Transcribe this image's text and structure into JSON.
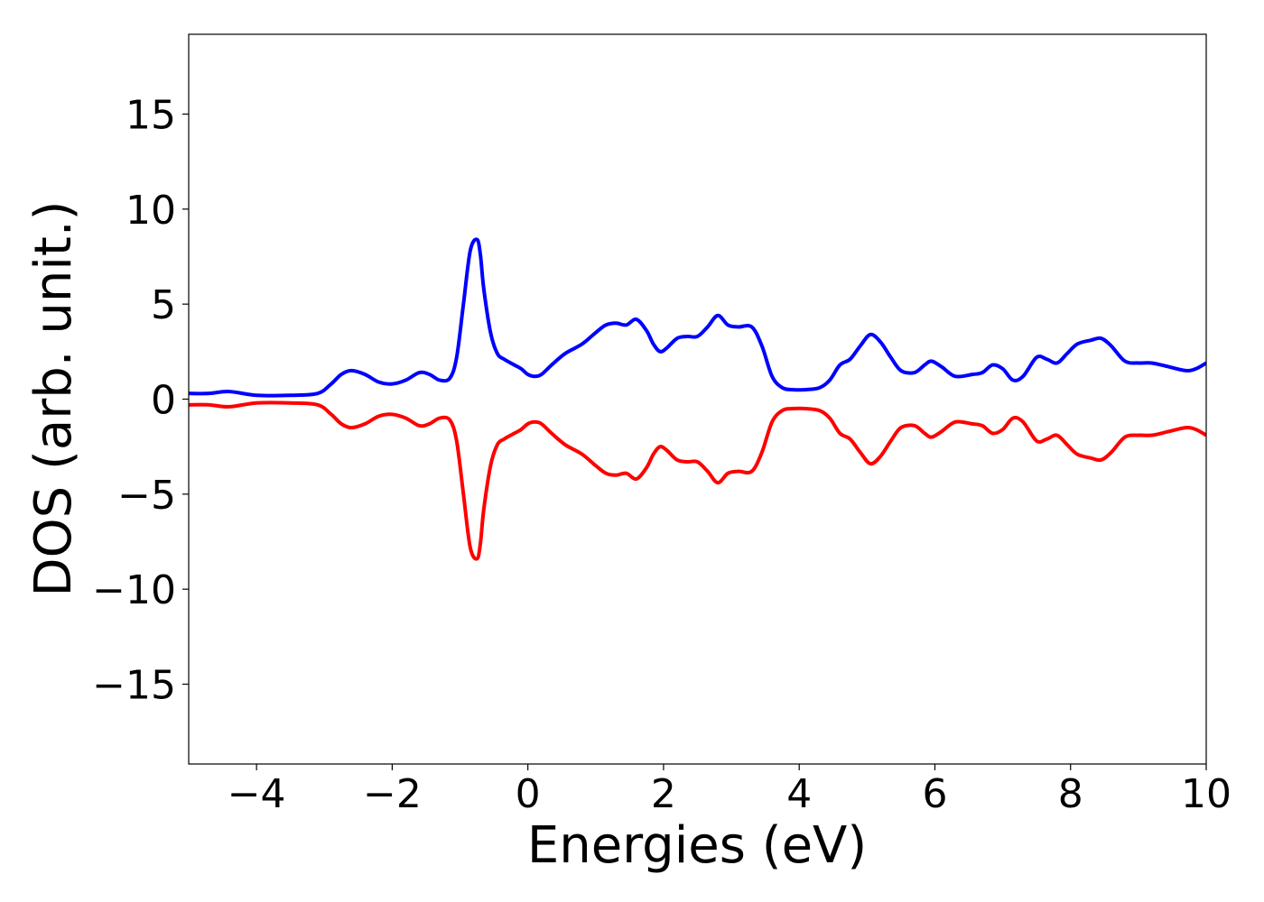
{
  "chart_data": {
    "type": "line",
    "title": "",
    "xlabel": "Energies (eV)",
    "ylabel": "DOS (arb. unit.)",
    "xlim": [
      -5,
      10
    ],
    "ylim": [
      -19.2,
      19.2
    ],
    "xticks": [
      -4,
      -2,
      0,
      2,
      4,
      6,
      8,
      10
    ],
    "xtick_labels": [
      "−4",
      "−2",
      "0",
      "2",
      "4",
      "6",
      "8",
      "10"
    ],
    "yticks": [
      15,
      10,
      5,
      0,
      -5,
      -10,
      -15
    ],
    "ytick_labels": [
      "15",
      "10",
      "5",
      "0",
      "−5",
      "−10",
      "−15"
    ],
    "grid": false,
    "legend": "none",
    "series": [
      {
        "color": "#0000ff",
        "x": [
          -5.0,
          -4.7,
          -4.4,
          -4.0,
          -3.5,
          -3.1,
          -2.9,
          -2.75,
          -2.6,
          -2.4,
          -2.2,
          -2.0,
          -1.8,
          -1.6,
          -1.45,
          -1.3,
          -1.15,
          -1.05,
          -0.95,
          -0.85,
          -0.75,
          -0.7,
          -0.65,
          -0.55,
          -0.45,
          -0.35,
          -0.2,
          -0.1,
          0.0,
          0.1,
          0.2,
          0.35,
          0.55,
          0.8,
          1.0,
          1.15,
          1.3,
          1.45,
          1.6,
          1.75,
          1.85,
          1.95,
          2.05,
          2.2,
          2.35,
          2.5,
          2.65,
          2.8,
          2.95,
          3.1,
          3.3,
          3.45,
          3.6,
          3.75,
          3.9,
          4.1,
          4.3,
          4.45,
          4.6,
          4.75,
          4.9,
          5.05,
          5.2,
          5.35,
          5.5,
          5.7,
          5.85,
          5.95,
          6.1,
          6.3,
          6.55,
          6.7,
          6.85,
          7.0,
          7.15,
          7.3,
          7.5,
          7.65,
          7.8,
          7.95,
          8.1,
          8.3,
          8.45,
          8.6,
          8.8,
          9.0,
          9.2,
          9.45,
          9.7,
          9.85,
          10.0
        ],
        "y": [
          0.3,
          0.3,
          0.4,
          0.2,
          0.2,
          0.3,
          0.8,
          1.3,
          1.5,
          1.3,
          0.9,
          0.8,
          1.0,
          1.4,
          1.3,
          1.0,
          1.1,
          2.2,
          5.0,
          7.8,
          8.4,
          7.6,
          5.8,
          3.5,
          2.4,
          2.1,
          1.8,
          1.6,
          1.3,
          1.2,
          1.3,
          1.8,
          2.4,
          2.9,
          3.5,
          3.9,
          4.0,
          3.9,
          4.2,
          3.6,
          2.9,
          2.5,
          2.7,
          3.2,
          3.3,
          3.3,
          3.8,
          4.4,
          3.9,
          3.8,
          3.8,
          2.8,
          1.2,
          0.6,
          0.5,
          0.5,
          0.6,
          1.0,
          1.8,
          2.1,
          2.8,
          3.4,
          3.0,
          2.2,
          1.5,
          1.4,
          1.8,
          2.0,
          1.7,
          1.2,
          1.3,
          1.4,
          1.8,
          1.6,
          1.0,
          1.2,
          2.2,
          2.1,
          1.9,
          2.4,
          2.9,
          3.1,
          3.2,
          2.8,
          2.0,
          1.9,
          1.9,
          1.7,
          1.5,
          1.6,
          1.9
        ]
      },
      {
        "color": "#ff0000",
        "x": [
          -5.0,
          -4.7,
          -4.4,
          -4.0,
          -3.5,
          -3.1,
          -2.9,
          -2.75,
          -2.6,
          -2.4,
          -2.2,
          -2.0,
          -1.8,
          -1.6,
          -1.45,
          -1.3,
          -1.15,
          -1.05,
          -0.95,
          -0.85,
          -0.75,
          -0.7,
          -0.65,
          -0.55,
          -0.45,
          -0.35,
          -0.2,
          -0.1,
          0.0,
          0.1,
          0.2,
          0.35,
          0.55,
          0.8,
          1.0,
          1.15,
          1.3,
          1.45,
          1.6,
          1.75,
          1.85,
          1.95,
          2.05,
          2.2,
          2.35,
          2.5,
          2.65,
          2.8,
          2.95,
          3.1,
          3.3,
          3.45,
          3.6,
          3.75,
          3.9,
          4.1,
          4.3,
          4.45,
          4.6,
          4.75,
          4.9,
          5.05,
          5.2,
          5.35,
          5.5,
          5.7,
          5.85,
          5.95,
          6.1,
          6.3,
          6.55,
          6.7,
          6.85,
          7.0,
          7.15,
          7.3,
          7.5,
          7.65,
          7.8,
          7.95,
          8.1,
          8.3,
          8.45,
          8.6,
          8.8,
          9.0,
          9.2,
          9.45,
          9.7,
          9.85,
          10.0
        ],
        "y": [
          -0.3,
          -0.3,
          -0.4,
          -0.2,
          -0.2,
          -0.3,
          -0.8,
          -1.3,
          -1.5,
          -1.3,
          -0.9,
          -0.8,
          -1.0,
          -1.4,
          -1.3,
          -1.0,
          -1.1,
          -2.2,
          -5.0,
          -7.8,
          -8.4,
          -7.6,
          -5.8,
          -3.5,
          -2.4,
          -2.1,
          -1.8,
          -1.6,
          -1.3,
          -1.2,
          -1.3,
          -1.8,
          -2.4,
          -2.9,
          -3.5,
          -3.9,
          -4.0,
          -3.9,
          -4.2,
          -3.6,
          -2.9,
          -2.5,
          -2.7,
          -3.2,
          -3.3,
          -3.3,
          -3.8,
          -4.4,
          -3.9,
          -3.8,
          -3.8,
          -2.8,
          -1.2,
          -0.6,
          -0.5,
          -0.5,
          -0.6,
          -1.0,
          -1.8,
          -2.1,
          -2.8,
          -3.4,
          -3.0,
          -2.2,
          -1.5,
          -1.4,
          -1.8,
          -2.0,
          -1.7,
          -1.2,
          -1.3,
          -1.4,
          -1.8,
          -1.6,
          -1.0,
          -1.2,
          -2.2,
          -2.1,
          -1.9,
          -2.4,
          -2.9,
          -3.1,
          -3.2,
          -2.8,
          -2.0,
          -1.9,
          -1.9,
          -1.7,
          -1.5,
          -1.6,
          -1.9
        ]
      }
    ]
  }
}
